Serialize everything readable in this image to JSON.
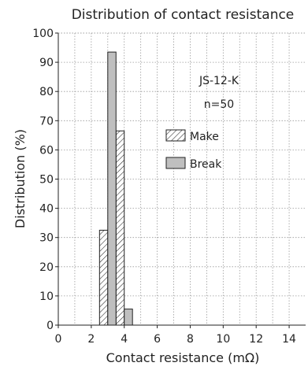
{
  "chart_data": {
    "type": "bar",
    "title": "Distribution of contact resistance",
    "xlabel": "Contact resistance (mΩ)",
    "ylabel": "Distribution (%)",
    "xlim": [
      0,
      15
    ],
    "ylim": [
      0,
      100
    ],
    "x_ticks": [
      0,
      2,
      4,
      6,
      8,
      10,
      12,
      14
    ],
    "y_ticks": [
      0,
      10,
      20,
      30,
      40,
      50,
      60,
      70,
      80,
      90,
      100
    ],
    "grid": true,
    "bin_width": 0.5,
    "annotations": [
      "JS-12-K",
      "n=50"
    ],
    "legend_position": "right",
    "series": [
      {
        "name": "Make",
        "pattern": "hatched",
        "bins": [
          {
            "x0": 2.5,
            "x1": 3.0,
            "value": 32.5
          },
          {
            "x0": 3.5,
            "x1": 4.0,
            "value": 66.5
          }
        ]
      },
      {
        "name": "Break",
        "pattern": "solid",
        "color": "#bfbfbf",
        "bins": [
          {
            "x0": 3.0,
            "x1": 3.5,
            "value": 93.5
          },
          {
            "x0": 4.0,
            "x1": 4.5,
            "value": 5.5
          }
        ]
      }
    ]
  }
}
